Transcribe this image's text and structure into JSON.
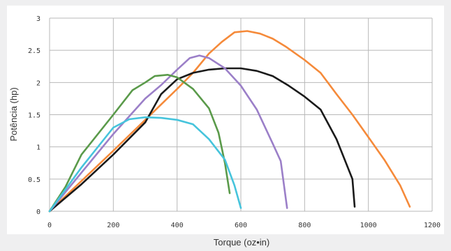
{
  "chart_data": {
    "type": "line",
    "title": "",
    "xlabel": "Torque (oz•in)",
    "ylabel": "Potência (hp)",
    "xlim": [
      0,
      1200
    ],
    "ylim": [
      0,
      3
    ],
    "x_ticks": [
      "0",
      "200",
      "400",
      "600",
      "800",
      "1000",
      "1200"
    ],
    "y_ticks": [
      "0",
      "0.5",
      "1",
      "1.5",
      "2",
      "2.5",
      "3"
    ],
    "grid": true,
    "legend": "none",
    "series": [
      {
        "color": "#f58a3a",
        "points": [
          [
            0,
            0
          ],
          [
            100,
            0.47
          ],
          [
            200,
            0.94
          ],
          [
            300,
            1.42
          ],
          [
            400,
            1.9
          ],
          [
            450,
            2.15
          ],
          [
            500,
            2.45
          ],
          [
            540,
            2.63
          ],
          [
            580,
            2.78
          ],
          [
            620,
            2.8
          ],
          [
            660,
            2.76
          ],
          [
            700,
            2.68
          ],
          [
            740,
            2.56
          ],
          [
            800,
            2.35
          ],
          [
            850,
            2.15
          ],
          [
            900,
            1.82
          ],
          [
            950,
            1.5
          ],
          [
            1000,
            1.15
          ],
          [
            1050,
            0.8
          ],
          [
            1100,
            0.4
          ],
          [
            1130,
            0.07
          ]
        ]
      },
      {
        "color": "#1a1a1a",
        "points": [
          [
            0,
            0
          ],
          [
            100,
            0.42
          ],
          [
            200,
            0.88
          ],
          [
            300,
            1.38
          ],
          [
            350,
            1.82
          ],
          [
            400,
            2.05
          ],
          [
            450,
            2.15
          ],
          [
            500,
            2.2
          ],
          [
            550,
            2.22
          ],
          [
            600,
            2.22
          ],
          [
            650,
            2.18
          ],
          [
            700,
            2.1
          ],
          [
            750,
            1.95
          ],
          [
            800,
            1.78
          ],
          [
            850,
            1.58
          ],
          [
            900,
            1.12
          ],
          [
            950,
            0.5
          ],
          [
            957,
            0.07
          ]
        ]
      },
      {
        "color": "#9b7fc8",
        "points": [
          [
            0,
            0
          ],
          [
            100,
            0.6
          ],
          [
            200,
            1.2
          ],
          [
            300,
            1.75
          ],
          [
            350,
            1.96
          ],
          [
            400,
            2.2
          ],
          [
            440,
            2.38
          ],
          [
            470,
            2.42
          ],
          [
            500,
            2.38
          ],
          [
            550,
            2.22
          ],
          [
            600,
            1.95
          ],
          [
            650,
            1.58
          ],
          [
            700,
            1.05
          ],
          [
            725,
            0.78
          ],
          [
            745,
            0.05
          ]
        ]
      },
      {
        "color": "#5a9a4a",
        "points": [
          [
            0,
            0
          ],
          [
            50,
            0.38
          ],
          [
            100,
            0.88
          ],
          [
            200,
            1.5
          ],
          [
            260,
            1.88
          ],
          [
            300,
            2.0
          ],
          [
            330,
            2.1
          ],
          [
            370,
            2.12
          ],
          [
            400,
            2.08
          ],
          [
            450,
            1.9
          ],
          [
            500,
            1.6
          ],
          [
            530,
            1.22
          ],
          [
            550,
            0.75
          ],
          [
            565,
            0.28
          ]
        ]
      },
      {
        "color": "#46c4dc",
        "points": [
          [
            0,
            0
          ],
          [
            100,
            0.68
          ],
          [
            200,
            1.3
          ],
          [
            250,
            1.43
          ],
          [
            300,
            1.46
          ],
          [
            350,
            1.45
          ],
          [
            400,
            1.42
          ],
          [
            450,
            1.35
          ],
          [
            500,
            1.12
          ],
          [
            550,
            0.8
          ],
          [
            580,
            0.4
          ],
          [
            600,
            0.05
          ]
        ]
      }
    ]
  }
}
